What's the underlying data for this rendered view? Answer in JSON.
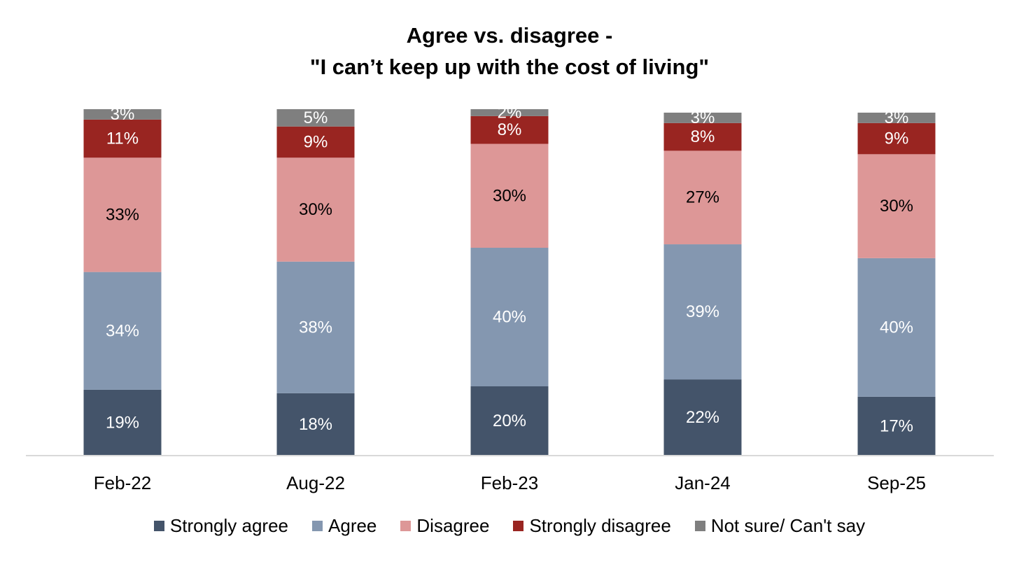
{
  "chart_data": {
    "type": "bar",
    "stacked": true,
    "title": [
      "Agree vs. disagree -",
      "\"I can’t keep up with the cost of living\""
    ],
    "xlabel": "",
    "ylabel": "",
    "ylim": [
      0,
      100
    ],
    "grid": false,
    "legend_position": "bottom",
    "categories": [
      "Feb-22",
      "Aug-22",
      "Feb-23",
      "Jan-24",
      "Sep-25"
    ],
    "series": [
      {
        "name": "Strongly agree",
        "color": "#44546a",
        "label_color": "#ffffff",
        "values": [
          19,
          18,
          20,
          22,
          17
        ]
      },
      {
        "name": "Agree",
        "color": "#8497b0",
        "label_color": "#ffffff",
        "values": [
          34,
          38,
          40,
          39,
          40
        ]
      },
      {
        "name": "Disagree",
        "color": "#dd9797",
        "label_color": "#000000",
        "values": [
          33,
          30,
          30,
          27,
          30
        ]
      },
      {
        "name": "Strongly disagree",
        "color": "#992521",
        "label_color": "#ffffff",
        "values": [
          11,
          9,
          8,
          8,
          9
        ]
      },
      {
        "name": "Not sure/ Can't say",
        "color": "#7f7f7f",
        "label_color": "#ffffff",
        "values": [
          3,
          5,
          2,
          3,
          3
        ]
      }
    ],
    "data_labels": [
      [
        "19%",
        "18%",
        "20%",
        "22%",
        "17%"
      ],
      [
        "34%",
        "38%",
        "40%",
        "39%",
        "40%"
      ],
      [
        "33%",
        "30%",
        "30%",
        "27%",
        "30%"
      ],
      [
        "11%",
        "9%",
        "8%",
        "8%",
        "9%"
      ],
      [
        "3%",
        "5%",
        "2%",
        "3%",
        "3%"
      ]
    ]
  }
}
